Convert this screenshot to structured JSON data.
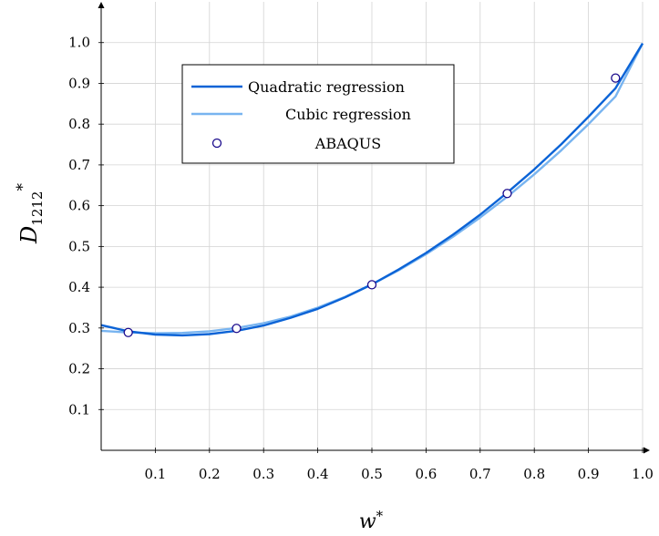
{
  "chart_data": {
    "type": "line",
    "xlabel": "w*",
    "ylabel": "D1212*",
    "xlim": [
      0,
      1.0
    ],
    "ylim": [
      0,
      1.1
    ],
    "xticks": [
      "0.1",
      "0.2",
      "0.3",
      "0.4",
      "0.5",
      "0.6",
      "0.7",
      "0.8",
      "0.9",
      "1.0"
    ],
    "yticks": [
      "0.1",
      "0.2",
      "0.3",
      "0.4",
      "0.5",
      "0.6",
      "0.7",
      "0.8",
      "0.9",
      "1.0"
    ],
    "grid": true,
    "legend_position": "upper-left",
    "colors": {
      "quadratic": "#0b63d6",
      "cubic": "#78b4f0",
      "abaqus_edge": "#1a0a8c",
      "grid": "#d3d3d3"
    },
    "series": [
      {
        "name": "Quadratic regression",
        "kind": "line",
        "x": [
          0,
          0.05,
          0.1,
          0.15,
          0.2,
          0.25,
          0.3,
          0.35,
          0.4,
          0.45,
          0.5,
          0.55,
          0.6,
          0.65,
          0.7,
          0.75,
          0.8,
          0.85,
          0.9,
          0.95,
          1.0
        ],
        "y": [
          0.307,
          0.292,
          0.284,
          0.282,
          0.285,
          0.293,
          0.306,
          0.325,
          0.347,
          0.375,
          0.407,
          0.444,
          0.484,
          0.529,
          0.578,
          0.632,
          0.689,
          0.751,
          0.818,
          0.888,
          0.998
        ]
      },
      {
        "name": "Cubic regression",
        "kind": "line",
        "x": [
          0,
          0.05,
          0.1,
          0.15,
          0.2,
          0.25,
          0.3,
          0.35,
          0.4,
          0.45,
          0.5,
          0.55,
          0.6,
          0.65,
          0.7,
          0.75,
          0.8,
          0.85,
          0.9,
          0.95,
          1.0
        ],
        "y": [
          0.293,
          0.289,
          0.287,
          0.288,
          0.292,
          0.3,
          0.312,
          0.328,
          0.35,
          0.376,
          0.407,
          0.442,
          0.481,
          0.524,
          0.571,
          0.622,
          0.677,
          0.736,
          0.8,
          0.868,
          0.998
        ]
      },
      {
        "name": "ABAQUS",
        "kind": "scatter",
        "x": [
          0.05,
          0.25,
          0.5,
          0.75,
          0.95
        ],
        "y": [
          0.289,
          0.299,
          0.406,
          0.63,
          0.913
        ]
      }
    ]
  }
}
